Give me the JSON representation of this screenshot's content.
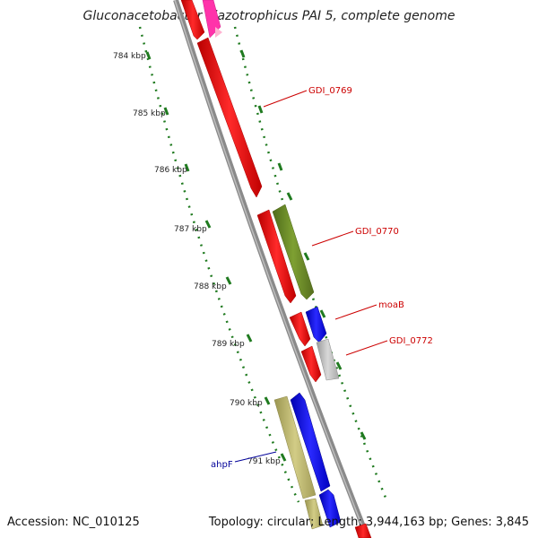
{
  "title": "Gluconacetobacter diazotrophicus PAI 5, complete genome",
  "footer": {
    "accession": "Accession: NC_010125",
    "summary": "Topology: circular; Length: 3,944,163 bp; Genes: 3,845"
  },
  "ruler": {
    "tick_labels": [
      "784 kbp",
      "785 kbp",
      "786 kbp",
      "787 kbp",
      "788 kbp",
      "789 kbp",
      "790 kbp",
      "791 kbp"
    ]
  },
  "gene_labels": [
    {
      "name": "GDI_0769",
      "color": "#cc0000"
    },
    {
      "name": "GDI_0770",
      "color": "#cc0000"
    },
    {
      "name": "moaB",
      "color": "#cc0000"
    },
    {
      "name": "GDI_0772",
      "color": "#cc0000"
    },
    {
      "name": "ahpF",
      "color": "#000099"
    }
  ],
  "colors": {
    "backbone": "#8a8a8a",
    "tick": "#1f7a1f",
    "red": "#ff0000",
    "olive": "#6b8e23",
    "blue": "#0000ff",
    "gray": "#c0c0c0",
    "khaki": "#bdb76b",
    "magenta": "#ff33aa",
    "pink": "#ffb0d0"
  }
}
